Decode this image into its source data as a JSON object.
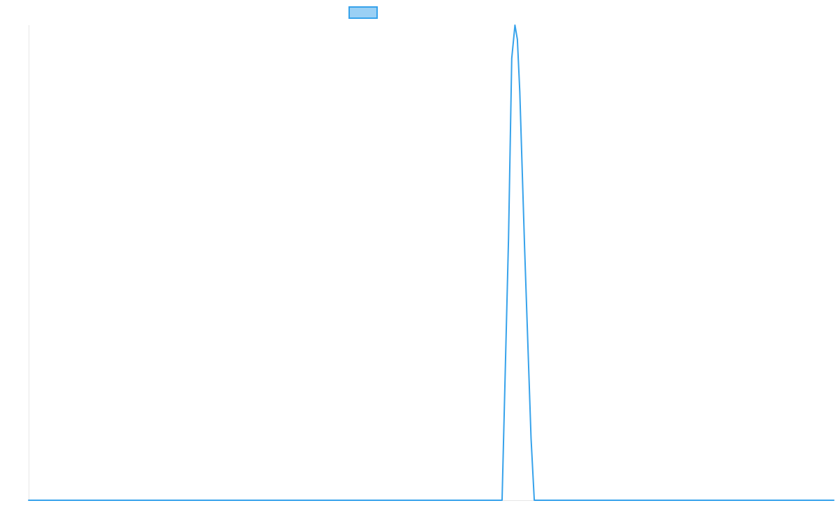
{
  "chart_data": {
    "type": "line",
    "title": "",
    "xlabel": "",
    "ylabel": "",
    "grid": false,
    "legend": {
      "placement": "top-center",
      "entries": [
        {
          "name": "",
          "color": "#36a2eb",
          "fill": "#9ad0f5"
        }
      ]
    },
    "xlim": [
      0,
      50
    ],
    "ylim": [
      0,
      1
    ],
    "series": [
      {
        "name": "",
        "color": "#36a2eb",
        "x": [
          0,
          29.4,
          29.8,
          30.0,
          30.2,
          30.35,
          30.5,
          30.8,
          31.2,
          31.4,
          50
        ],
        "y": [
          0,
          0,
          0.55,
          0.93,
          1.0,
          0.97,
          0.86,
          0.53,
          0.13,
          0,
          0
        ]
      }
    ]
  }
}
